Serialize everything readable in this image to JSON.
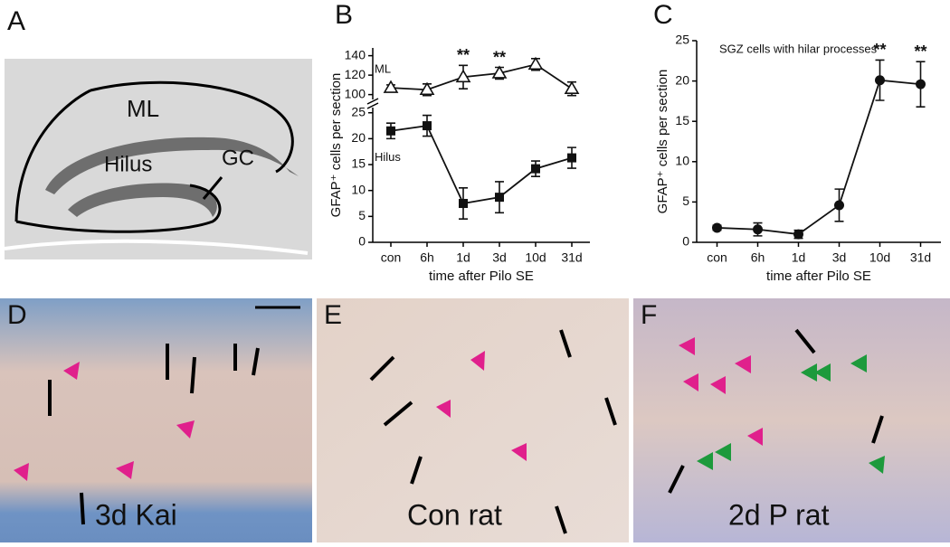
{
  "panel_letters": [
    "A",
    "B",
    "C",
    "D",
    "E",
    "F"
  ],
  "panel_a": {
    "labels": [
      "ML",
      "Hilus",
      "GC"
    ]
  },
  "photo_labels": [
    "3d Kai",
    "Con rat",
    "2d P rat"
  ],
  "chart_data": [
    {
      "type": "line",
      "categories": [
        "con",
        "6h",
        "1d",
        "3d",
        "10d",
        "31d"
      ],
      "xlabel": "time after Pilo SE",
      "ylabel": "GFAP⁺ cells per section",
      "ylim": [
        0,
        26
      ],
      "yticks": [
        0,
        5,
        10,
        15,
        20,
        25
      ],
      "upper_ylim": [
        95,
        148
      ],
      "upper_yticks": [
        100,
        120,
        140
      ],
      "broken_axis": true,
      "series": [
        {
          "name": "ML",
          "color": "#111111",
          "marker": "open-triangle",
          "axis": "upper",
          "values": [
            107,
            105,
            118,
            122,
            131,
            106
          ],
          "errors": [
            3,
            6,
            12,
            6,
            6,
            7
          ]
        },
        {
          "name": "Hilus",
          "color": "#111111",
          "marker": "square",
          "axis": "lower",
          "values": [
            21.5,
            22.5,
            7.5,
            8.7,
            14.2,
            16.3
          ],
          "errors": [
            1.5,
            2,
            3,
            3,
            1.5,
            2
          ]
        }
      ],
      "annotations": [
        {
          "text": "**",
          "x": "1d"
        },
        {
          "text": "**",
          "x": "3d"
        }
      ]
    },
    {
      "type": "line",
      "categories": [
        "con",
        "6h",
        "1d",
        "3d",
        "10d",
        "31d"
      ],
      "xlabel": "time after Pilo SE",
      "ylabel": "GFAP⁺ cells per section",
      "subtitle": "SGZ cells with hilar processes",
      "ylim": [
        0,
        25
      ],
      "yticks": [
        0,
        5,
        10,
        15,
        20,
        25
      ],
      "series": [
        {
          "color": "#111111",
          "marker": "circle",
          "values": [
            1.8,
            1.6,
            1.0,
            4.6,
            20.1,
            19.6
          ],
          "errors": [
            0.3,
            0.8,
            0.5,
            2,
            2.5,
            2.8
          ]
        }
      ],
      "annotations": [
        {
          "text": "**",
          "x": "10d"
        },
        {
          "text": "**",
          "x": "31d"
        }
      ]
    }
  ]
}
